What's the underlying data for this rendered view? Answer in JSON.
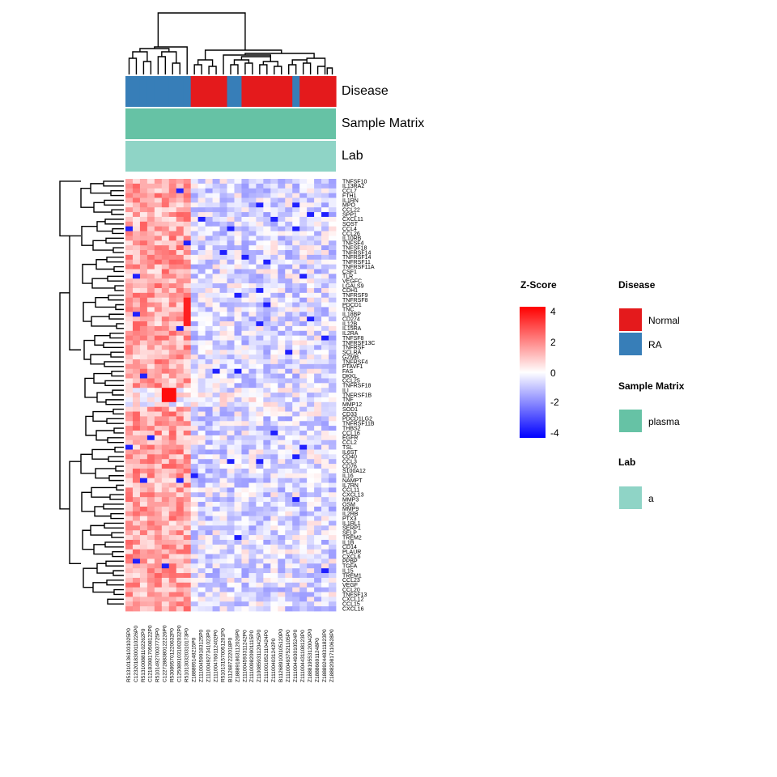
{
  "chart_data": {
    "type": "heatmap",
    "annotation_tracks": [
      "Disease",
      "Sample Matrix",
      "Lab"
    ],
    "columns": [
      "R513101361031025P0",
      "C1232018300110226P0",
      "R513100881102262P0",
      "C1218398170508122P0",
      "R510149270037725P0",
      "C1227288380122226P0",
      "R530895701220632P0",
      "C1250891031002032P0",
      "R510130320310173P0",
      "Z188895148215P0",
      "Z111004599183125P0",
      "Z111004927341023P0",
      "Z111004760112402P0",
      "R510131570051201P0",
      "B112687222018P0",
      "Z188891863112026P0",
      "Z111004593311242P0",
      "Z111009820901115P0",
      "Z110085931120425P0",
      "Z111001052110424P0",
      "Z111004031242P0",
      "B112689100105120P0",
      "Z111004937521105P0",
      "Z111004493010524P0",
      "Z111004431108123P0",
      "Z188819553120042P0",
      "Z188866911248P0",
      "Z188892448311823P0",
      "Z188820817110628P0"
    ],
    "column_disease": [
      "RA",
      "RA",
      "RA",
      "RA",
      "RA",
      "RA",
      "RA",
      "RA",
      "RA",
      "Normal",
      "Normal",
      "Normal",
      "Normal",
      "Normal",
      "RA",
      "RA",
      "Normal",
      "Normal",
      "Normal",
      "Normal",
      "Normal",
      "Normal",
      "Normal",
      "RA",
      "Normal",
      "Normal",
      "Normal",
      "Normal",
      "Normal"
    ],
    "rows": [
      "TNFSF10",
      "IL13RA2",
      "CCL7",
      "FTH1",
      "IL1RN",
      "MPO",
      "CCL22",
      "SPP1",
      "CXCL11",
      "SOST",
      "CCL4",
      "CCL26",
      "IL10RB",
      "TNFSF4",
      "TNFSF18",
      "TNFRSF14",
      "TNFRSF14",
      "TNFRSF11",
      "TNFRSF11A",
      "CSF1",
      "TLR",
      "VEGFC",
      "LGALS9",
      "CDH1",
      "TNFRSF9",
      "TNFRSF8",
      "PDCD1",
      "TNC",
      "IL18BP",
      "CD274",
      "IL12B",
      "IL15RA",
      "IL2RA",
      "TNFSF8",
      "TNFRSF13C",
      "TNFRSF",
      "SCLRA",
      "GZMB",
      "TNFRSF4",
      "PTAVF1",
      "FAS",
      "DKKL",
      "CCL25",
      "TNFRSF18",
      "ILI",
      "TNFRSF1B",
      "TNF",
      "MMP12",
      "SOD1",
      "CD33",
      "PDCD1LG2",
      "TNFRSF11B",
      "THBS2",
      "CCL16",
      "EGFR",
      "CCL2",
      "TSL",
      "IL6ST",
      "CD40",
      "CCL3",
      "CD76",
      "S100A12",
      "IL16",
      "NAMPT",
      "IL7RN",
      "CCL11",
      "CXCL13",
      "MMP3",
      "OSM",
      "MMP9",
      "IL2RB",
      "PTX3",
      "IL1RL1",
      "SERP1",
      "SELP",
      "TREM2",
      "IL1B",
      "CD14",
      "PLAUR",
      "CXCL6",
      "PPBP",
      "TGFA",
      "IL15",
      "TREM1",
      "CCL23",
      "VEGF",
      "CCL20",
      "TNFSF13",
      "CXCL12",
      "CCL15",
      "CXCL16"
    ],
    "z_range": [
      -4,
      4
    ],
    "z_ticks": [
      4,
      2,
      0,
      -2,
      -4
    ],
    "legends": [
      {
        "title": "Z-Score",
        "colors": {
          "high": "#ff0000",
          "mid": "#ffffff",
          "low": "#0000ff"
        }
      },
      {
        "title": "Disease",
        "items": [
          {
            "label": "Normal",
            "color": "#e41a1c"
          },
          {
            "label": "RA",
            "color": "#377eb8"
          }
        ]
      },
      {
        "title": "Sample Matrix",
        "items": [
          {
            "label": "plasma",
            "color": "#66c2a5"
          }
        ]
      },
      {
        "title": "Lab",
        "items": [
          {
            "label": "a",
            "color": "#8fd4c6"
          }
        ]
      }
    ]
  }
}
